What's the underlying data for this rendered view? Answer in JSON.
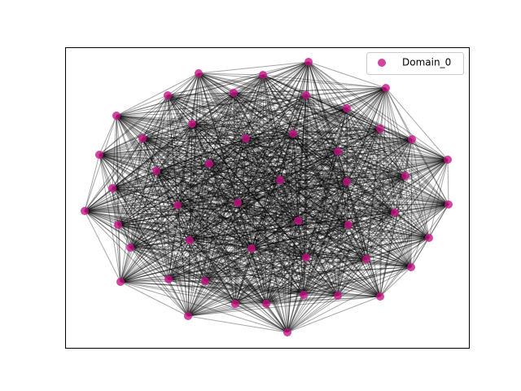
{
  "legend": {
    "label": "Domain_0"
  }
}
